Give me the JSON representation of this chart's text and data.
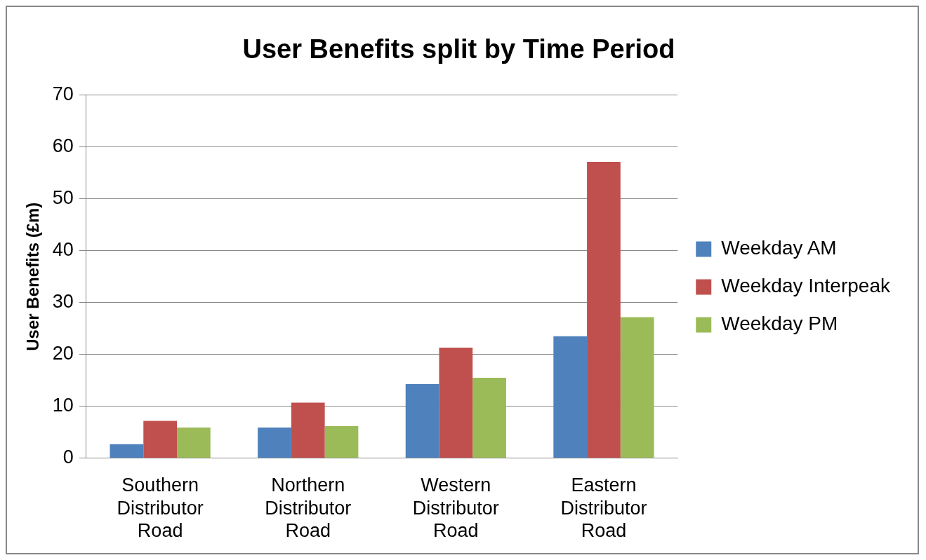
{
  "chart_data": {
    "type": "bar",
    "title": "User Benefits split by Time Period",
    "ylabel": "User Benefits (£m)",
    "categories": [
      "Southern Distributor Road",
      "Northern Distributor Road",
      "Western Distributor Road",
      "Eastern Distributor Road"
    ],
    "series": [
      {
        "name": "Weekday AM",
        "color": "#4f81bd",
        "values": [
          2.7,
          5.9,
          14.3,
          23.5
        ]
      },
      {
        "name": "Weekday Interpeak",
        "color": "#c0504d",
        "values": [
          7.2,
          10.7,
          21.3,
          57.1
        ]
      },
      {
        "name": "Weekday PM",
        "color": "#9bbb59",
        "values": [
          5.9,
          6.2,
          15.5,
          27.2
        ]
      }
    ],
    "ylim": [
      0,
      70
    ],
    "yticks": [
      0,
      10,
      20,
      30,
      40,
      50,
      60,
      70
    ],
    "grid": "y",
    "legend": "right"
  }
}
